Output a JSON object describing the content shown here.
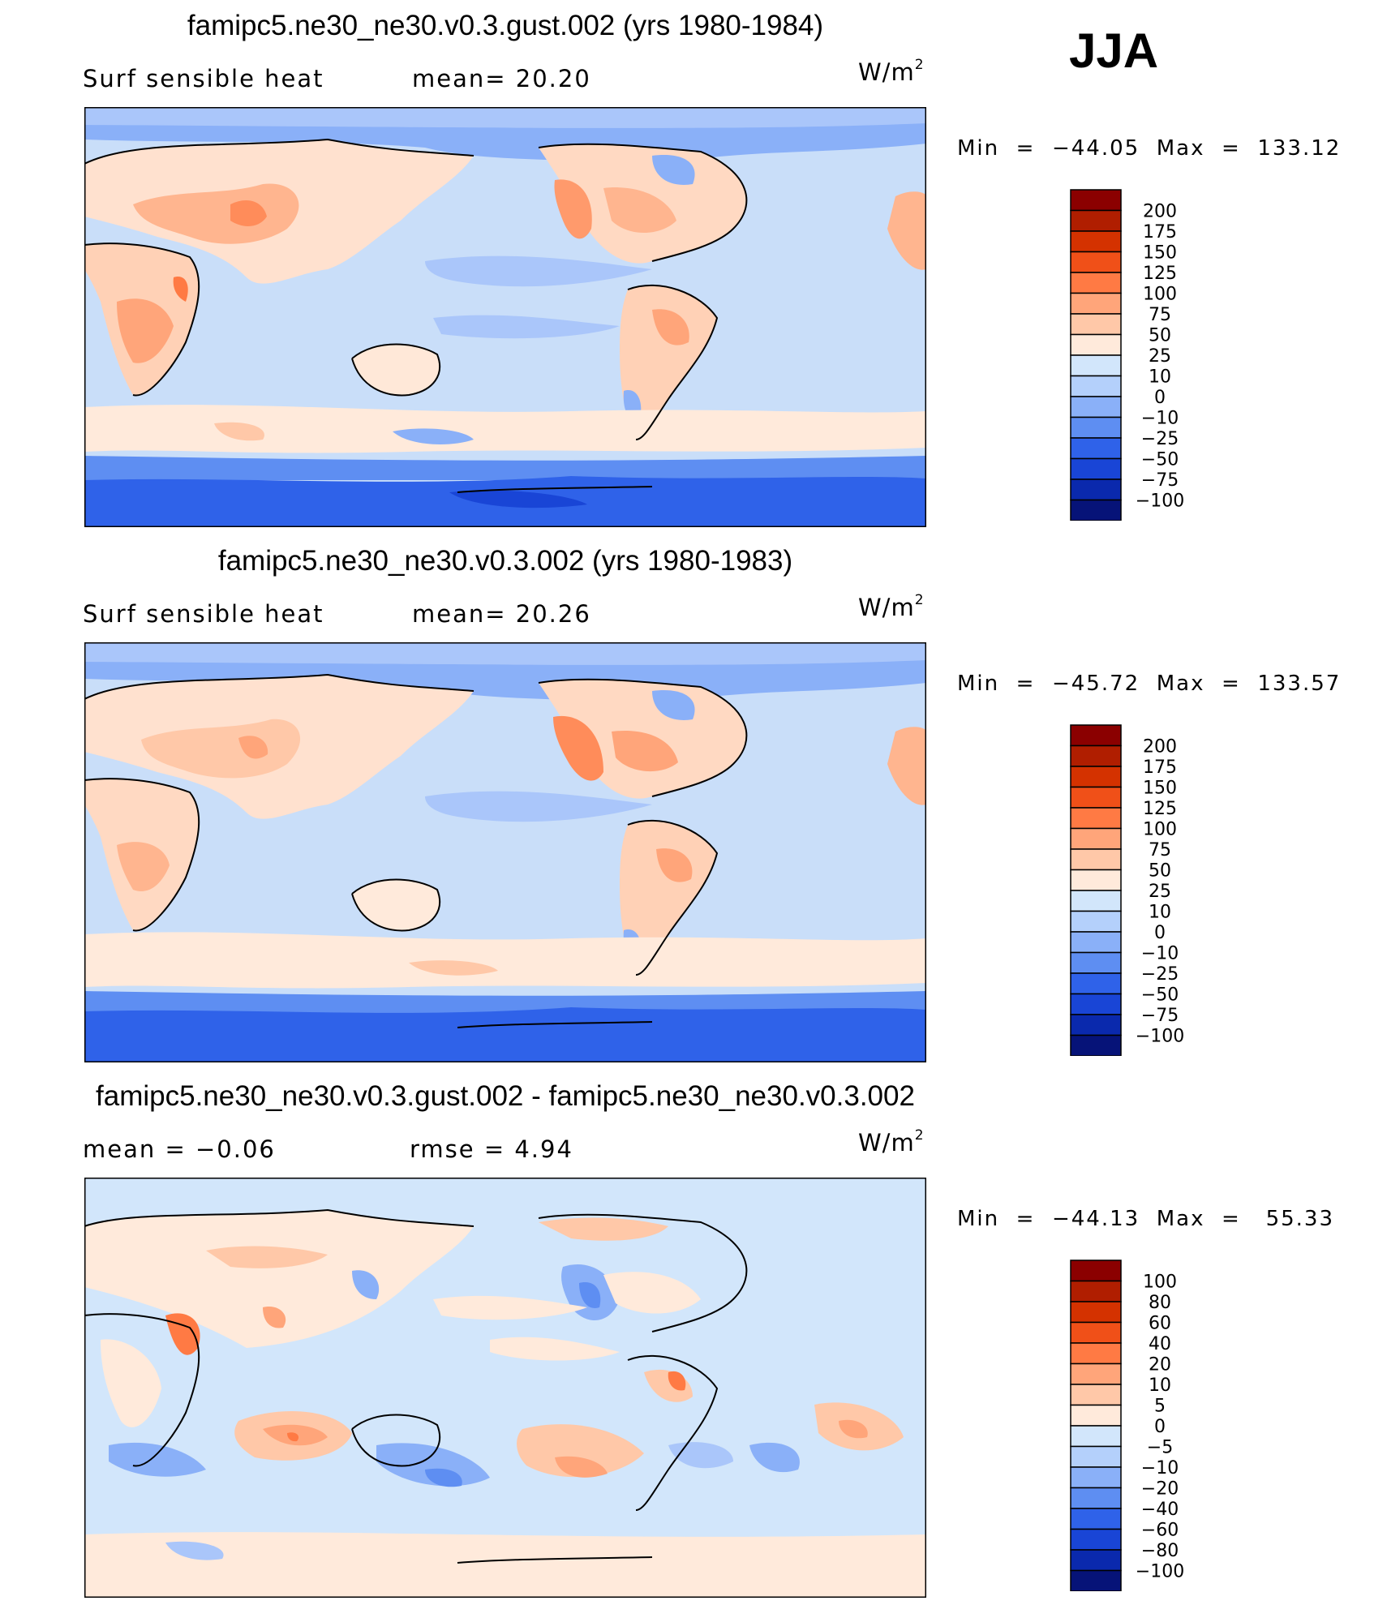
{
  "season": "JJA",
  "panels": [
    {
      "title": "famipc5.ne30_ne30.v0.3.gust.002 (yrs 1980-1984)",
      "left_label": "Surf  sensible  heat",
      "mid_label": "mean=   20.20",
      "units_base": "W/m",
      "units_exp": "2",
      "minmax": "Min  =  −44.05  Max  =  133.12",
      "colorbar": {
        "labels": [
          "200",
          "175",
          "150",
          "125",
          "100",
          "75",
          "50",
          "25",
          "10",
          "0",
          "−10",
          "−25",
          "−50",
          "−75",
          "−100"
        ],
        "colors": [
          "#8b0000",
          "#b01e00",
          "#d43200",
          "#f05018",
          "#ff7a44",
          "#ffa57a",
          "#ffc8a8",
          "#ffeadb",
          "#d2e6fb",
          "#b4d0fb",
          "#8ab0f8",
          "#5e8ef2",
          "#2f62e9",
          "#1945d6",
          "#0a29ad",
          "#061378"
        ]
      }
    },
    {
      "title": "famipc5.ne30_ne30.v0.3.002 (yrs 1980-1983)",
      "left_label": "Surf  sensible  heat",
      "mid_label": "mean=   20.26",
      "units_base": "W/m",
      "units_exp": "2",
      "minmax": "Min  =  −45.72  Max  =  133.57",
      "colorbar": {
        "labels": [
          "200",
          "175",
          "150",
          "125",
          "100",
          "75",
          "50",
          "25",
          "10",
          "0",
          "−10",
          "−25",
          "−50",
          "−75",
          "−100"
        ],
        "colors": [
          "#8b0000",
          "#b01e00",
          "#d43200",
          "#f05018",
          "#ff7a44",
          "#ffa57a",
          "#ffc8a8",
          "#ffeadb",
          "#d2e6fb",
          "#b4d0fb",
          "#8ab0f8",
          "#5e8ef2",
          "#2f62e9",
          "#1945d6",
          "#0a29ad",
          "#061378"
        ]
      }
    },
    {
      "title": "famipc5.ne30_ne30.v0.3.gust.002 - famipc5.ne30_ne30.v0.3.002",
      "left_label": "mean  =    −0.06",
      "mid_label": "rmse  =     4.94",
      "units_base": "W/m",
      "units_exp": "2",
      "minmax": "Min  =  −44.13  Max  =   55.33",
      "colorbar": {
        "labels": [
          "100",
          "80",
          "60",
          "40",
          "20",
          "10",
          "5",
          "0",
          "−5",
          "−10",
          "−20",
          "−40",
          "−60",
          "−80",
          "−100"
        ],
        "colors": [
          "#8b0000",
          "#b01e00",
          "#d43200",
          "#f05018",
          "#ff7a44",
          "#ffa57a",
          "#ffc8a8",
          "#ffeadb",
          "#d2e6fb",
          "#b4d0fb",
          "#8ab0f8",
          "#5e8ef2",
          "#2f62e9",
          "#1945d6",
          "#0a29ad",
          "#061378"
        ]
      }
    }
  ],
  "chart_data": [
    {
      "type": "heatmap",
      "title": "famipc5.ne30_ne30.v0.3.gust.002 (yrs 1980-1984)",
      "variable": "Surf sensible heat",
      "units": "W/m2",
      "season": "JJA",
      "mean": 20.2,
      "min": -44.05,
      "max": 133.12,
      "contour_levels": [
        -100,
        -75,
        -50,
        -25,
        -10,
        0,
        10,
        25,
        50,
        75,
        100,
        125,
        150,
        175,
        200
      ],
      "projection": "cylindrical equidistant, Pacific-centered global map"
    },
    {
      "type": "heatmap",
      "title": "famipc5.ne30_ne30.v0.3.002 (yrs 1980-1983)",
      "variable": "Surf sensible heat",
      "units": "W/m2",
      "season": "JJA",
      "mean": 20.26,
      "min": -45.72,
      "max": 133.57,
      "contour_levels": [
        -100,
        -75,
        -50,
        -25,
        -10,
        0,
        10,
        25,
        50,
        75,
        100,
        125,
        150,
        175,
        200
      ],
      "projection": "cylindrical equidistant, Pacific-centered global map"
    },
    {
      "type": "heatmap",
      "title": "famipc5.ne30_ne30.v0.3.gust.002 - famipc5.ne30_ne30.v0.3.002",
      "variable": "Surf sensible heat difference",
      "units": "W/m2",
      "season": "JJA",
      "mean": -0.06,
      "rmse": 4.94,
      "min": -44.13,
      "max": 55.33,
      "contour_levels": [
        -100,
        -80,
        -60,
        -40,
        -20,
        -10,
        -5,
        0,
        5,
        10,
        20,
        40,
        60,
        80,
        100
      ],
      "projection": "cylindrical equidistant, Pacific-centered global map"
    }
  ]
}
